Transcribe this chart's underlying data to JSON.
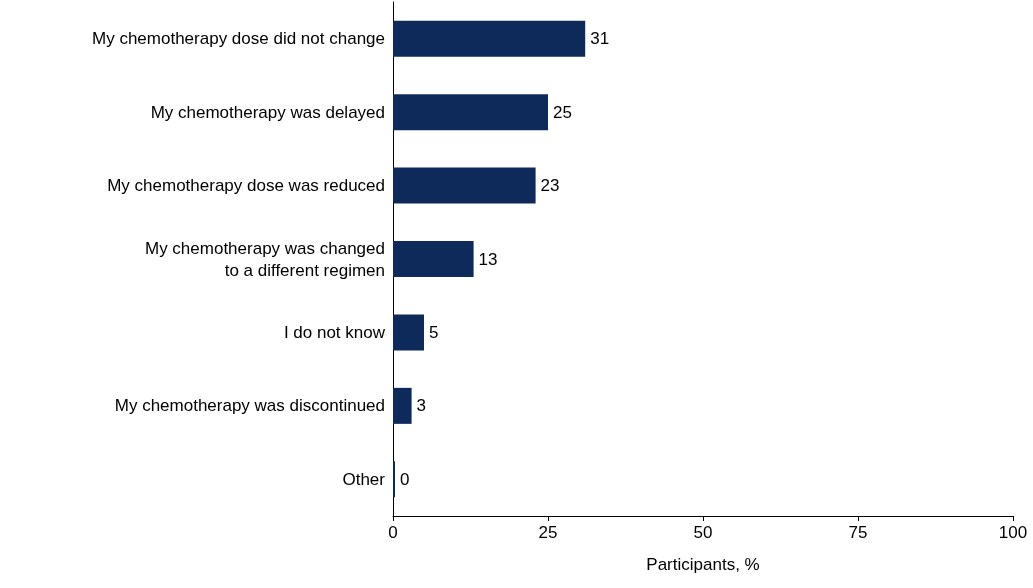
{
  "chart_data": {
    "type": "bar",
    "orientation": "horizontal",
    "categories": [
      "My chemotherapy dose did not change",
      "My chemotherapy was delayed",
      "My chemotherapy dose was reduced",
      "My chemotherapy was changed\nto a different regimen",
      "I do not know",
      "My chemotherapy was discontinued",
      "Other"
    ],
    "values": [
      31,
      25,
      23,
      13,
      5,
      3,
      0
    ],
    "color": "#0d2a5a",
    "data_labels": true,
    "xlabel": "Participants, %",
    "xlim": [
      0,
      100
    ],
    "xticks": [
      0,
      25,
      50,
      75,
      100
    ],
    "grid": false
  }
}
